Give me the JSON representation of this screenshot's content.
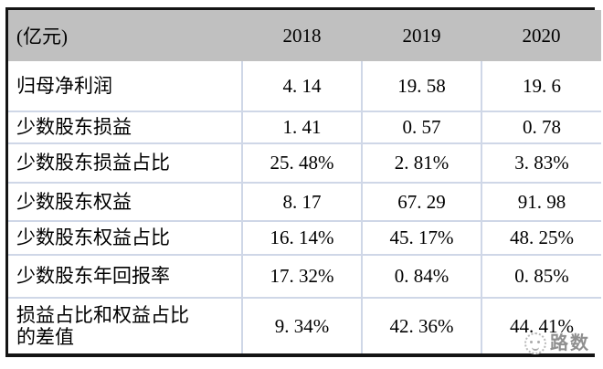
{
  "table": {
    "unit_label": "(亿元)",
    "col_headers": [
      "2018",
      "2019",
      "2020"
    ],
    "rows": [
      {
        "label": "归母净利润",
        "values": [
          "4. 14",
          "19. 58",
          "19. 6"
        ]
      },
      {
        "label": "少数股东损益",
        "values": [
          "1. 41",
          "0. 57",
          "0. 78"
        ]
      },
      {
        "label": "少数股东损益占比",
        "values": [
          "25. 48%",
          "2. 81%",
          "3. 83%"
        ]
      },
      {
        "label": "少数股东权益",
        "values": [
          "8. 17",
          "67. 29",
          "91. 98"
        ]
      },
      {
        "label": "少数股东权益占比",
        "values": [
          "16. 14%",
          "45. 17%",
          "48. 25%"
        ]
      },
      {
        "label": "少数股东年回报率",
        "values": [
          "17. 32%",
          "0. 84%",
          "0. 85%"
        ]
      },
      {
        "label": "损益占比和权益占比的差值",
        "values": [
          "9. 34%",
          "42. 36%",
          "44. 41%"
        ]
      }
    ],
    "header_bg": "#c0c0c0",
    "grid_color": "#cfd7e7",
    "border_color": "#141414"
  },
  "watermark": {
    "brand": "路数",
    "icon": "dashed-circle-logo"
  },
  "chart_data": {
    "type": "table",
    "title": "",
    "columns": [
      "(亿元)",
      "2018",
      "2019",
      "2020"
    ],
    "rows": [
      [
        "归母净利润",
        4.14,
        19.58,
        19.6
      ],
      [
        "少数股东损益",
        1.41,
        0.57,
        0.78
      ],
      [
        "少数股东损益占比",
        "25.48%",
        "2.81%",
        "3.83%"
      ],
      [
        "少数股东权益",
        8.17,
        67.29,
        91.98
      ],
      [
        "少数股东权益占比",
        "16.14%",
        "45.17%",
        "48.25%"
      ],
      [
        "少数股东年回报率",
        "17.32%",
        "0.84%",
        "0.85%"
      ],
      [
        "损益占比和权益占比的差值",
        "9.34%",
        "42.36%",
        "44.41%"
      ]
    ]
  }
}
